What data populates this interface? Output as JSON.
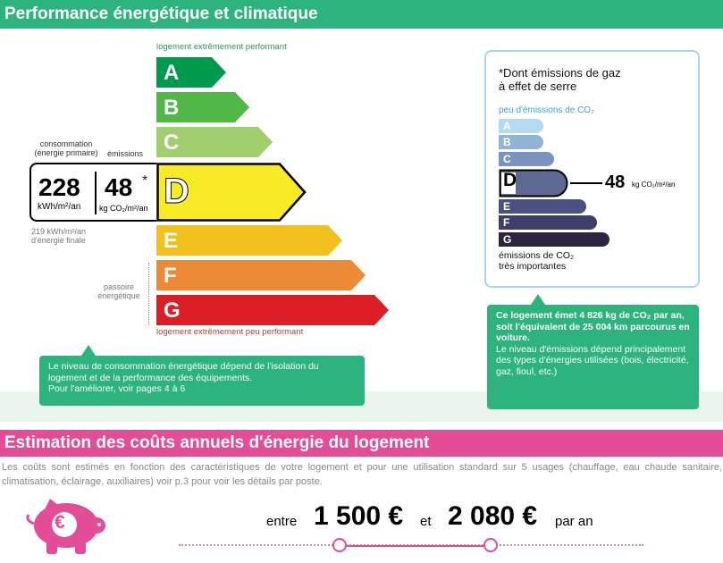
{
  "section1_title": "Performance énergétique et climatique",
  "scale_top_label": "logement extrêmement performant",
  "scale_bottom_label": "logement extrêmement peu performant",
  "classes": [
    "A",
    "B",
    "C",
    "D",
    "E",
    "F",
    "G"
  ],
  "current_class": "D",
  "consumption": {
    "header": "consommation\n(énergie primaire)",
    "value": "228",
    "unit": "kWh/m²/an",
    "final_energy": "219 kWh/m²/an\nd'énergie finale"
  },
  "emissions": {
    "header": "émissions",
    "value": "48",
    "star": "*",
    "unit": "kg CO₂/m²/an"
  },
  "passoire_label": "passoire\nénergétique",
  "co2_panel": {
    "note": "*Dont émissions de gaz\nà effet de serre",
    "top_label": "peu d'émissions de CO₂",
    "bottom_label": "émissions de CO₂\ntrès importantes",
    "value": "48",
    "unit": "kg CO₂/m²/an"
  },
  "callout_left": "Le niveau de consommation énergétique dépend de l'isolation du logement et de la performance des équipements.\nPour l'améliorer, voir pages 4 à 6",
  "callout_right": {
    "bold": "Ce logement émet 4 826 kg de CO₂ par an, soit l'équivalent de 25 004 km parcourus en voiture.",
    "text": "Le niveau d'émissions dépend principalement des types d'énergies utilisées (bois, électricité, gaz, fioul, etc.)"
  },
  "section2_title": "Estimation des coûts annuels d'énergie du logement",
  "cost_description": "Les coûts sont estimés en fonction des caractéristiques de votre logement et pour une utilisation standard sur 5 usages (chauffage, eau chaude sanitaire, climatisation, éclairage, auxiliaires) voir p.3 pour voir les détails par poste.",
  "cost": {
    "between": "entre",
    "low": "1 500 €",
    "and": "et",
    "high": "2 080 €",
    "per_year": "par an",
    "currency_symbol": "€"
  },
  "colors": {
    "green": "#2db37e",
    "pink": "#e34c96",
    "A": "#019a4d",
    "B": "#51b848",
    "C": "#a2cf6e",
    "D": "#f7eb26",
    "E": "#f2c01c",
    "F": "#ec8a36",
    "G": "#dc1f26"
  }
}
